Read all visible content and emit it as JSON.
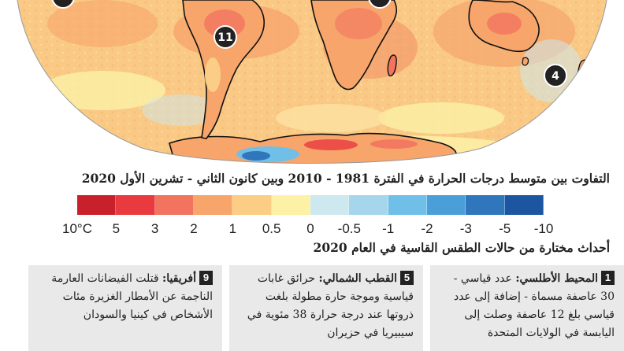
{
  "markers": [
    {
      "id": "11"
    },
    {
      "id": "4"
    }
  ],
  "scale": {
    "title": "التفاوت بين متوسط درجات الحرارة في الفترة 1981 - 2010 وبين كانون الثاني - تشرين الأول 2020",
    "colors": [
      "#c8212b",
      "#e83a3f",
      "#f2745f",
      "#f7a56b",
      "#fbcd85",
      "#fdf1a6",
      "#cde8ef",
      "#a5d6ec",
      "#70bfe9",
      "#4b9fd8",
      "#2f76bc",
      "#1c56a0"
    ],
    "ticks": [
      "10°C",
      "5",
      "3",
      "2",
      "1",
      "0.5",
      "0",
      "-0.5",
      "-1",
      "-2",
      "-3",
      "-5",
      "-10"
    ]
  },
  "events_title": "أحداث مختارة من حالات الطقس القاسية في العام 2020",
  "events": [
    {
      "num": "1",
      "region": "المحيط الأطلسي:",
      "text": "عدد قياسي - 30 عاصفة مسماة - إضافة إلى عدد قياسي بلغ 12 عاصفة وصلت إلى اليابسة في الولايات المتحدة"
    },
    {
      "num": "5",
      "region": "القطب الشمالي:",
      "text": "حرائق غابات قياسية وموجة حارة مطولة بلغت ذروتها عند درجة حرارة 38 مئوية في سيبيريا في حزيران"
    },
    {
      "num": "9",
      "region": "أفريقيا:",
      "text": "قتلت الفيضانات العارمة الناجمة عن الأمطار الغزيرة مئات الأشخاص في كينيا والسودان"
    }
  ]
}
